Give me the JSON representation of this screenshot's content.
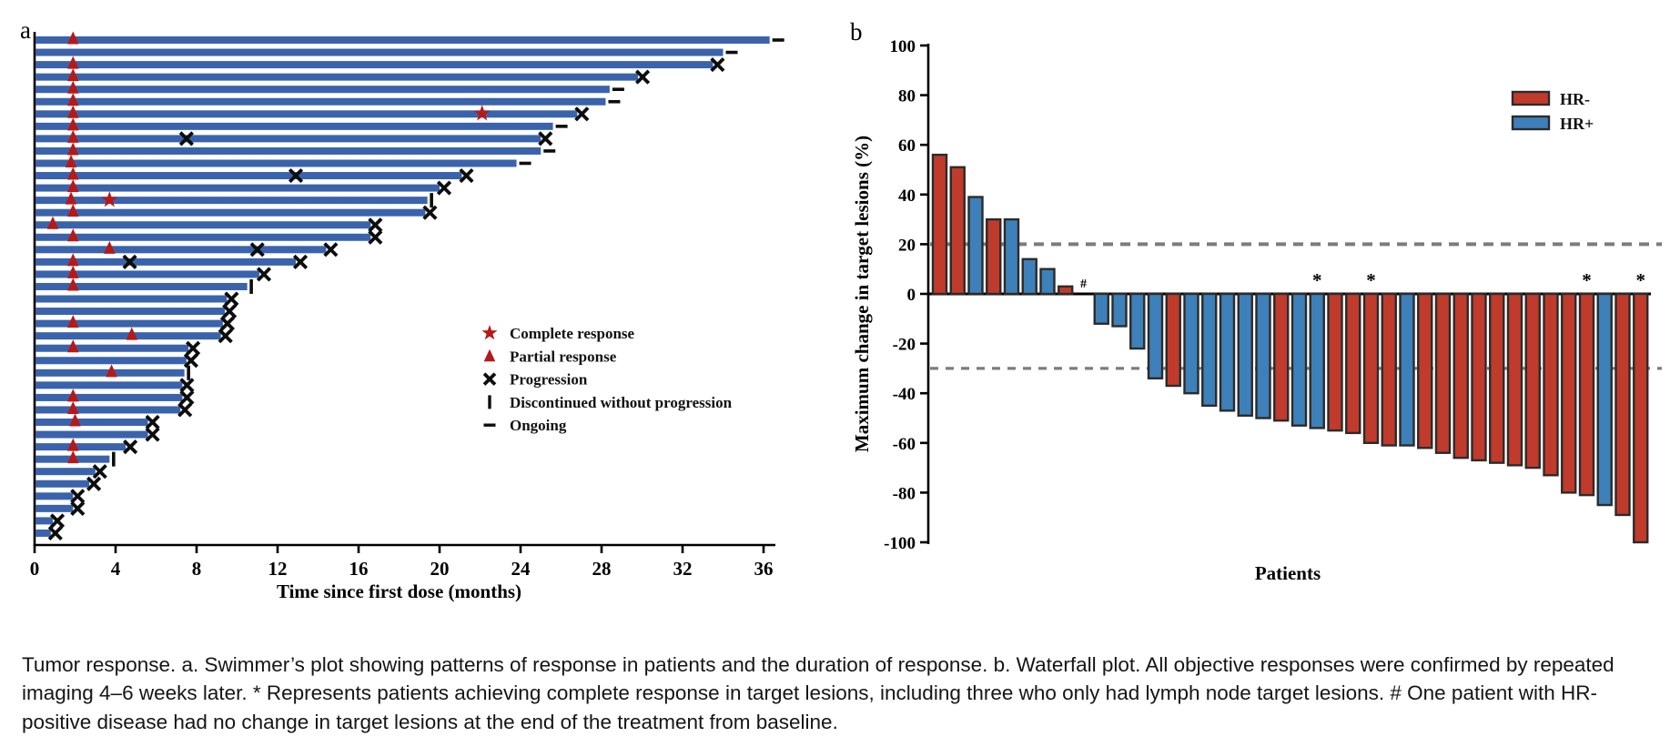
{
  "figure": {
    "caption": "Tumor response. a. Swimmer’s plot showing patterns of response in patients and the duration of response. b. Waterfall plot. All objective responses were confirmed by repeated imaging 4–6 weeks later. * Represents patients achieving complete response in target lesions, including three who only had lymph node target lesions. # One patient with HR-positive disease had no change in target lesions at the end of the treatment from baseline."
  },
  "colors": {
    "swimmer_bar": "#3A63AC",
    "response_marker": "#B61917",
    "progression_marker": "#0D0D0D",
    "hr_negative": "#C03B2C",
    "hr_positive": "#3E80B9",
    "bar_border": "#2B2B2B",
    "dashed_line": "#7C7C7C",
    "axis": "#000000"
  },
  "chart_data": [
    {
      "id": "swimmer",
      "type": "bar",
      "panel_label": "a",
      "orientation": "horizontal",
      "xlabel": "Time since first dose (months)",
      "x_ticks": [
        0,
        4,
        8,
        12,
        16,
        20,
        24,
        28,
        32,
        36
      ],
      "xlim": [
        0,
        37.5
      ],
      "grid": false,
      "legend_items": [
        {
          "symbol": "star",
          "label": "Complete response"
        },
        {
          "symbol": "triangle",
          "label": "Partial response"
        },
        {
          "symbol": "x",
          "label": "Progression"
        },
        {
          "symbol": "vbar",
          "label": "Discontinued without progression"
        },
        {
          "symbol": "dash",
          "label": "Ongoing"
        }
      ],
      "patients": [
        {
          "months": 36.3,
          "end": "ongoing",
          "pr": 1.9
        },
        {
          "months": 34.0,
          "end": "ongoing"
        },
        {
          "months": 33.5,
          "end": "progression",
          "pr": 1.9
        },
        {
          "months": 29.8,
          "end": "progression",
          "pr": 1.9
        },
        {
          "months": 28.4,
          "end": "ongoing",
          "pr": 1.9
        },
        {
          "months": 28.2,
          "end": "ongoing",
          "pr": 1.9
        },
        {
          "months": 26.8,
          "end": "progression",
          "pr": 1.9,
          "cr": 22.1
        },
        {
          "months": 25.6,
          "end": "ongoing",
          "pr": 1.9
        },
        {
          "months": 25.0,
          "end": "progression",
          "pr": 1.9,
          "x_events": [
            7.5
          ]
        },
        {
          "months": 25.0,
          "end": "ongoing",
          "pr": 1.9
        },
        {
          "months": 23.8,
          "end": "ongoing",
          "pr": 1.8
        },
        {
          "months": 21.1,
          "end": "progression",
          "pr": 1.9,
          "x_events": [
            12.9
          ]
        },
        {
          "months": 20.0,
          "end": "progression",
          "pr": 1.9
        },
        {
          "months": 19.4,
          "end": "discontinued",
          "pr": 1.8,
          "cr": 3.7
        },
        {
          "months": 19.3,
          "end": "progression",
          "pr": 1.9
        },
        {
          "months": 16.6,
          "end": "progression",
          "pr": 0.9
        },
        {
          "months": 16.6,
          "end": "progression",
          "pr": 1.9
        },
        {
          "months": 14.4,
          "end": "progression",
          "pr": 3.7,
          "x_events": [
            11.0
          ]
        },
        {
          "months": 12.9,
          "end": "progression",
          "pr": 1.9,
          "x_events": [
            4.7
          ]
        },
        {
          "months": 11.1,
          "end": "progression",
          "pr": 1.9
        },
        {
          "months": 10.5,
          "end": "discontinued",
          "pr": 1.9
        },
        {
          "months": 9.5,
          "end": "progression"
        },
        {
          "months": 9.4,
          "end": "progression"
        },
        {
          "months": 9.3,
          "end": "progression",
          "pr": 1.9
        },
        {
          "months": 9.2,
          "end": "progression",
          "pr": 4.8
        },
        {
          "months": 7.6,
          "end": "progression",
          "pr": 1.9
        },
        {
          "months": 7.5,
          "end": "progression"
        },
        {
          "months": 7.4,
          "end": "discontinued",
          "pr": 3.8
        },
        {
          "months": 7.3,
          "end": "progression"
        },
        {
          "months": 7.3,
          "end": "progression",
          "pr": 1.9
        },
        {
          "months": 7.2,
          "end": "progression",
          "pr": 1.9
        },
        {
          "months": 5.6,
          "end": "progression",
          "pr": 2.0
        },
        {
          "months": 5.6,
          "end": "progression"
        },
        {
          "months": 4.5,
          "end": "progression",
          "pr": 1.9
        },
        {
          "months": 3.7,
          "end": "discontinued",
          "pr": 1.9
        },
        {
          "months": 3.0,
          "end": "progression"
        },
        {
          "months": 2.7,
          "end": "progression"
        },
        {
          "months": 1.9,
          "end": "progression"
        },
        {
          "months": 1.9,
          "end": "progression"
        },
        {
          "months": 0.9,
          "end": "progression"
        },
        {
          "months": 0.8,
          "end": "progression"
        }
      ]
    },
    {
      "id": "waterfall",
      "type": "bar",
      "panel_label": "b",
      "ylabel": "Maximum change in target lesions (%)",
      "xlabel": "Patients",
      "y_ticks": [
        100,
        80,
        60,
        40,
        20,
        0,
        -20,
        -40,
        -60,
        -80,
        -100
      ],
      "ylim": [
        -100,
        100
      ],
      "grid": false,
      "reference_lines": [
        20,
        -30
      ],
      "legend_position": "top-right",
      "legend_items": [
        {
          "label": "HR-",
          "group": "HR-"
        },
        {
          "label": "HR+",
          "group": "HR+"
        }
      ],
      "bars": [
        {
          "value": 56,
          "group": "HR-"
        },
        {
          "value": 51,
          "group": "HR-"
        },
        {
          "value": 39,
          "group": "HR+"
        },
        {
          "value": 30,
          "group": "HR-"
        },
        {
          "value": 30,
          "group": "HR+"
        },
        {
          "value": 14,
          "group": "HR+"
        },
        {
          "value": 10,
          "group": "HR+"
        },
        {
          "value": 3,
          "group": "HR-"
        },
        {
          "value": 0,
          "group": "HR+",
          "mark": "#"
        },
        {
          "value": -12,
          "group": "HR+"
        },
        {
          "value": -13,
          "group": "HR+"
        },
        {
          "value": -22,
          "group": "HR+"
        },
        {
          "value": -34,
          "group": "HR+"
        },
        {
          "value": -37,
          "group": "HR-"
        },
        {
          "value": -40,
          "group": "HR+"
        },
        {
          "value": -45,
          "group": "HR+"
        },
        {
          "value": -47,
          "group": "HR+"
        },
        {
          "value": -49,
          "group": "HR+"
        },
        {
          "value": -50,
          "group": "HR+"
        },
        {
          "value": -51,
          "group": "HR-"
        },
        {
          "value": -53,
          "group": "HR+"
        },
        {
          "value": -54,
          "group": "HR+",
          "mark": "*"
        },
        {
          "value": -55,
          "group": "HR-"
        },
        {
          "value": -56,
          "group": "HR-"
        },
        {
          "value": -60,
          "group": "HR-",
          "mark": "*"
        },
        {
          "value": -61,
          "group": "HR-"
        },
        {
          "value": -61,
          "group": "HR+"
        },
        {
          "value": -62,
          "group": "HR-"
        },
        {
          "value": -64,
          "group": "HR-"
        },
        {
          "value": -66,
          "group": "HR-"
        },
        {
          "value": -67,
          "group": "HR-"
        },
        {
          "value": -68,
          "group": "HR-"
        },
        {
          "value": -69,
          "group": "HR-"
        },
        {
          "value": -70,
          "group": "HR-"
        },
        {
          "value": -73,
          "group": "HR-"
        },
        {
          "value": -80,
          "group": "HR-"
        },
        {
          "value": -81,
          "group": "HR-",
          "mark": "*"
        },
        {
          "value": -85,
          "group": "HR+"
        },
        {
          "value": -89,
          "group": "HR-"
        },
        {
          "value": -100,
          "group": "HR-",
          "mark": "*"
        }
      ]
    }
  ]
}
